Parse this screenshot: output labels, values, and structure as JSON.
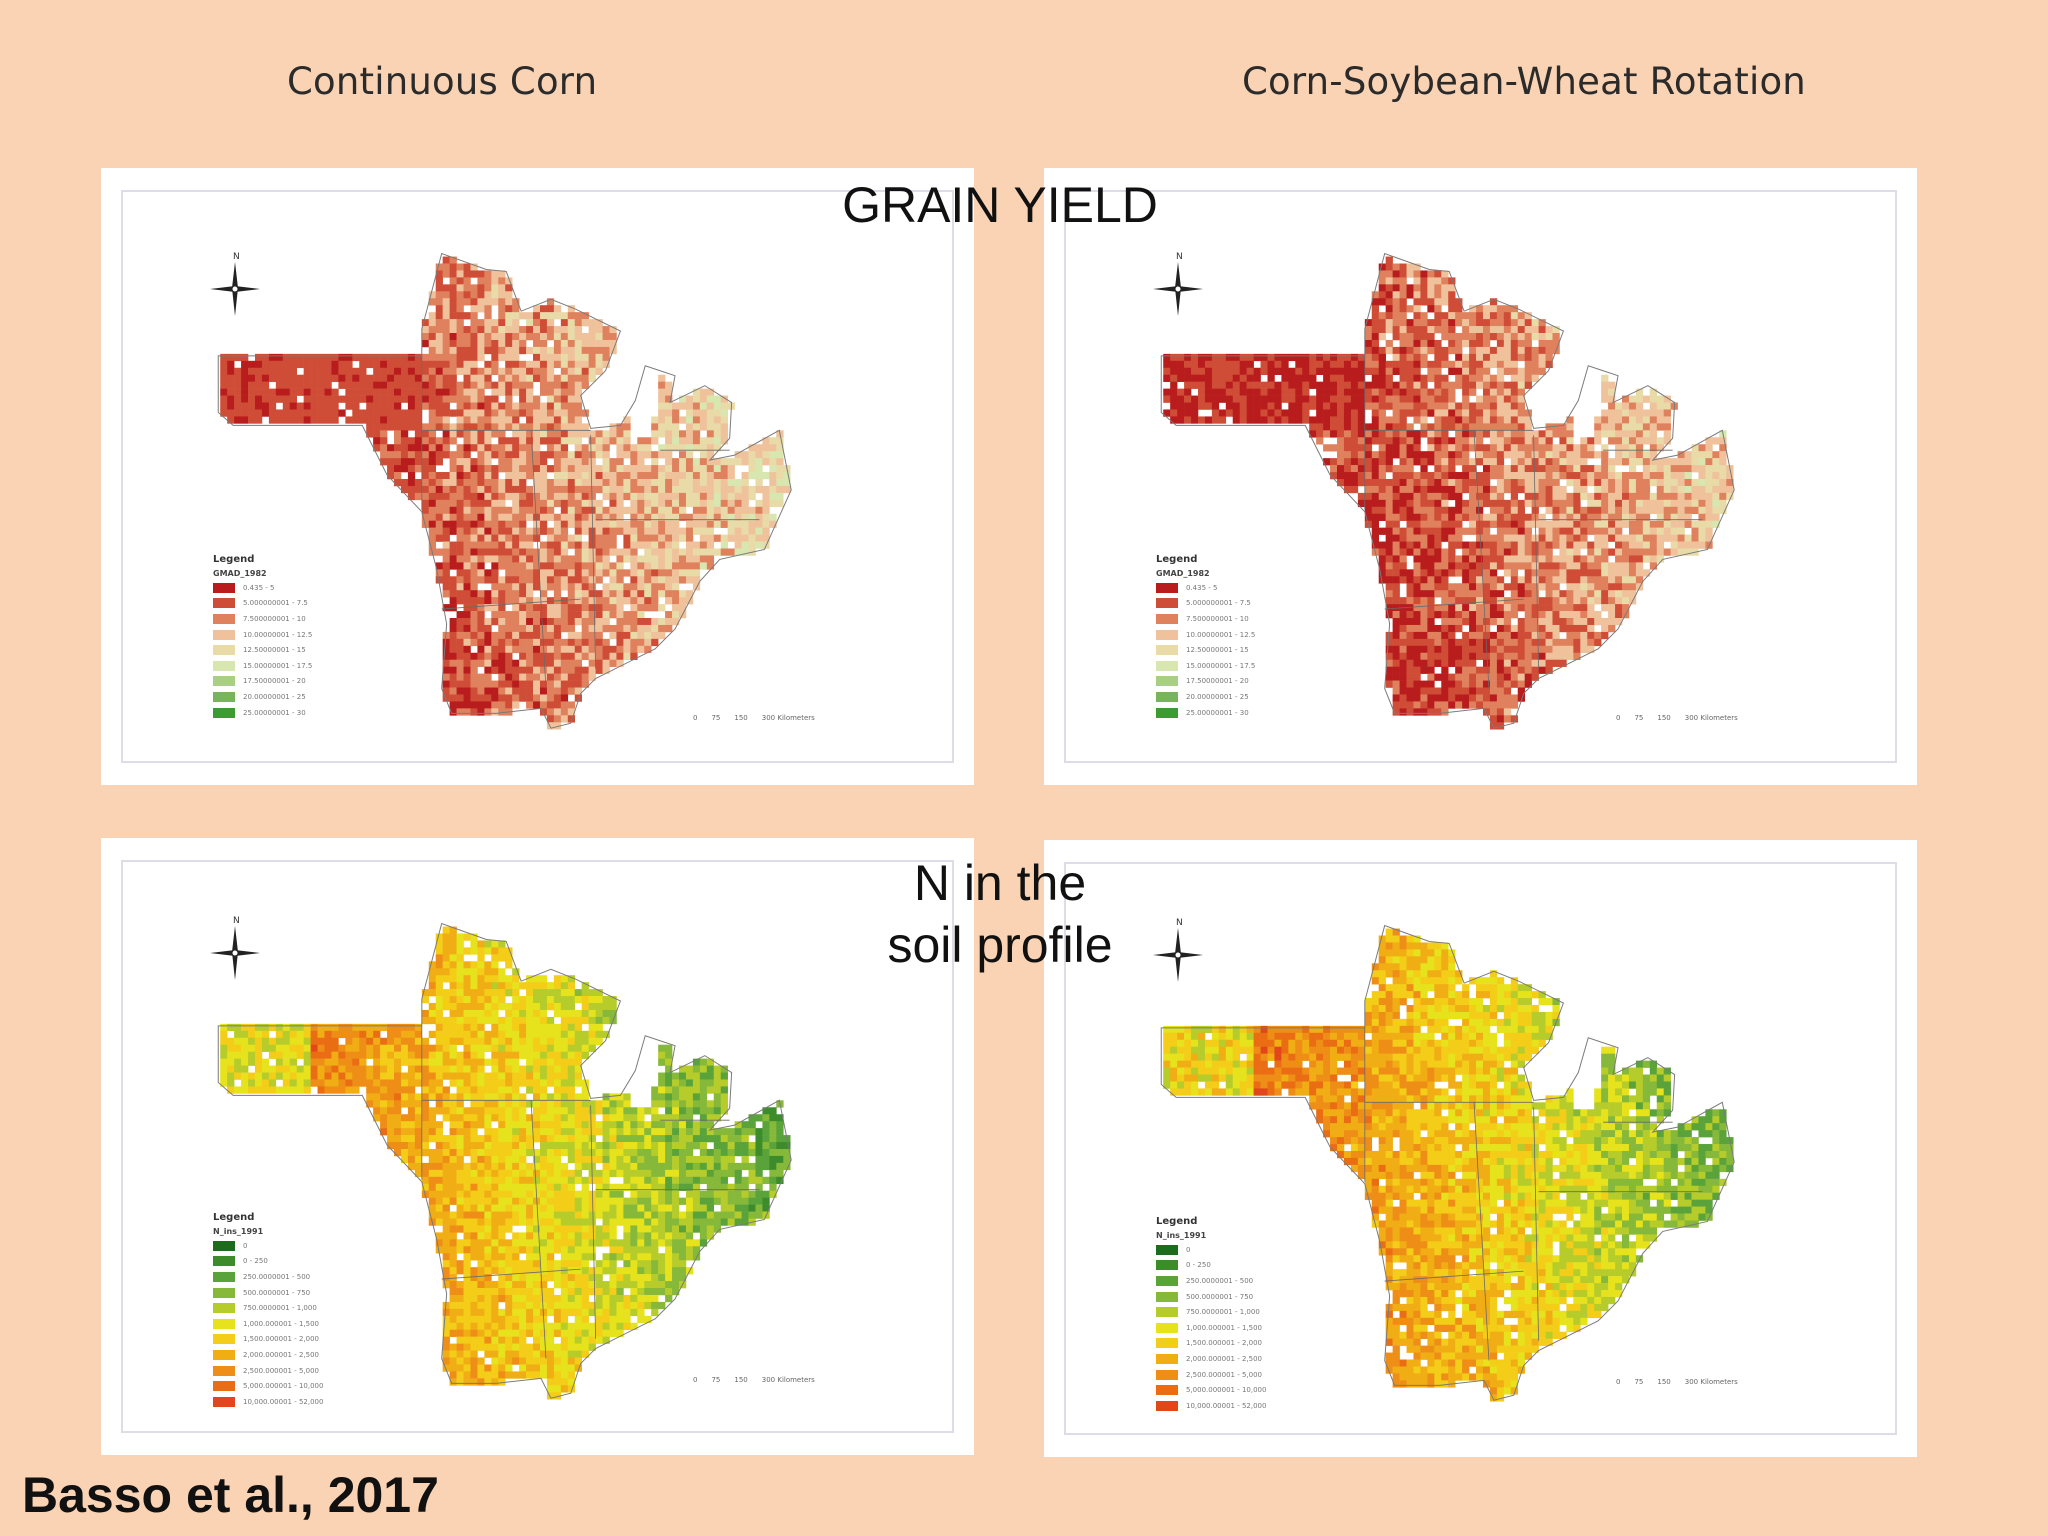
{
  "column_titles": {
    "left": "Continuous Corn",
    "right": "Corn-Soybean-Wheat Rotation"
  },
  "row_titles": {
    "grain_yield": "GRAIN YIELD",
    "n_soil": [
      "N in the",
      "soil profile"
    ]
  },
  "citation": "Basso et al., 2017",
  "north_label": "N",
  "scale_bar": [
    "0",
    "75",
    "150",
    "300 Kilometers"
  ],
  "maps": [
    {
      "legend_title": "Legend",
      "field": "GMAD_1982",
      "palette": [
        "#b81c1c",
        "#cf4d36",
        "#e0815e",
        "#efc29c",
        "#e8dba8",
        "#d8e6b0",
        "#a9cf84",
        "#78b45e",
        "#3f9a35"
      ],
      "labels": [
        "0.435 - 5",
        "5.000000001 - 7.5",
        "7.500000001 - 10",
        "10.00000001 - 12.5",
        "12.50000001 - 15",
        "15.00000001 - 17.5",
        "17.50000001 - 20",
        "20.00000001 - 25",
        "25.00000001 - 30"
      ]
    },
    {
      "legend_title": "Legend",
      "field": "GMAD_1982",
      "palette": [
        "#b81c1c",
        "#cf4d36",
        "#e0815e",
        "#efc29c",
        "#e8dba8",
        "#d8e6b0",
        "#a9cf84",
        "#78b45e",
        "#3f9a35"
      ],
      "labels": [
        "0.435 - 5",
        "5.000000001 - 7.5",
        "7.500000001 - 10",
        "10.00000001 - 12.5",
        "12.50000001 - 15",
        "15.00000001 - 17.5",
        "17.50000001 - 20",
        "20.00000001 - 25",
        "25.00000001 - 30"
      ]
    },
    {
      "legend_title": "Legend",
      "field": "N_ins_1991",
      "palette": [
        "#1d6b1d",
        "#3c8c2c",
        "#5aa33a",
        "#86b83a",
        "#b6cc2a",
        "#e6e21c",
        "#f3cd18",
        "#f0ad14",
        "#ee8e16",
        "#ea6d14",
        "#e2461a"
      ],
      "labels": [
        "0",
        "0 - 250",
        "250.0000001 - 500",
        "500.0000001 - 750",
        "750.0000001 - 1,000",
        "1,000.000001 - 1,500",
        "1,500.000001 - 2,000",
        "2,000.000001 - 2,500",
        "2,500.000001 - 5,000",
        "5,000.000001 - 10,000",
        "10,000.00001 - 52,000"
      ]
    },
    {
      "legend_title": "Legend",
      "field": "N_ins_1991",
      "palette": [
        "#1d6b1d",
        "#3c8c2c",
        "#5aa33a",
        "#86b83a",
        "#b6cc2a",
        "#e6e21c",
        "#f3cd18",
        "#f0ad14",
        "#ee8e16",
        "#ea6d14",
        "#e2461a"
      ],
      "labels": [
        "0",
        "0 - 250",
        "250.0000001 - 500",
        "500.0000001 - 750",
        "750.0000001 - 1,000",
        "1,000.000001 - 1,500",
        "1,500.000001 - 2,000",
        "2,000.000001 - 2,500",
        "2,500.000001 - 5,000",
        "5,000.000001 - 10,000",
        "10,000.00001 - 52,000"
      ]
    }
  ]
}
